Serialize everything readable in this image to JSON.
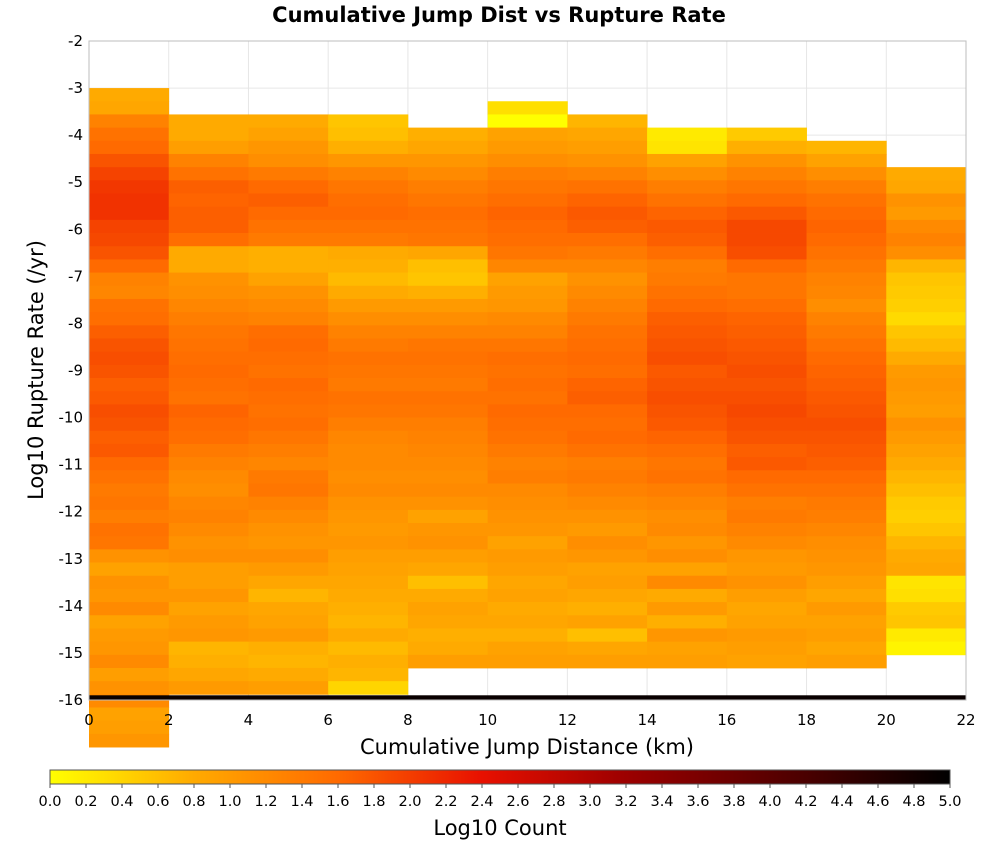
{
  "chart_data": {
    "type": "heatmap",
    "title": "Cumulative Jump Dist vs Rupture Rate",
    "xlabel": "Cumulative Jump Distance (km)",
    "ylabel": "Log10 Rupture Rate (/yr)",
    "xlim": [
      0,
      22
    ],
    "ylim": [
      -16,
      -2
    ],
    "x_ticks": [
      "0",
      "2",
      "4",
      "6",
      "8",
      "10",
      "12",
      "14",
      "16",
      "18",
      "20",
      "22"
    ],
    "y_ticks": [
      "-2",
      "-3",
      "-4",
      "-5",
      "-6",
      "-7",
      "-8",
      "-9",
      "-10",
      "-11",
      "-12",
      "-13",
      "-14",
      "-15",
      "-16"
    ],
    "grid": true,
    "x_bin_width": 2,
    "y_bin_height": 0.28,
    "color_scale": {
      "label": "Log10 Count",
      "min": 0.0,
      "max": 5.0,
      "ticks": [
        "0.0",
        "0.2",
        "0.4",
        "0.6",
        "0.8",
        "1.0",
        "1.2",
        "1.4",
        "1.6",
        "1.8",
        "2.0",
        "2.2",
        "2.4",
        "2.6",
        "2.8",
        "3.0",
        "3.2",
        "3.4",
        "3.6",
        "3.8",
        "4.0",
        "4.2",
        "4.4",
        "4.6",
        "4.8",
        "5.0"
      ],
      "stops": [
        {
          "v": 0.0,
          "color": "#ffff00"
        },
        {
          "v": 0.8,
          "color": "#ffaa00"
        },
        {
          "v": 1.6,
          "color": "#ff6a00"
        },
        {
          "v": 2.4,
          "color": "#e81000"
        },
        {
          "v": 3.2,
          "color": "#9c0000"
        },
        {
          "v": 4.2,
          "color": "#4a0000"
        },
        {
          "v": 5.0,
          "color": "#000000"
        }
      ]
    },
    "columns": [
      {
        "x": 1,
        "top": -3.0,
        "values": [
          0.8,
          0.85,
          1.3,
          1.5,
          1.6,
          1.8,
          1.95,
          2.05,
          2.1,
          2.1,
          1.95,
          1.9,
          1.8,
          1.6,
          1.3,
          1.25,
          1.5,
          1.55,
          1.7,
          1.8,
          1.85,
          1.8,
          1.7,
          1.75,
          1.85,
          1.8,
          1.7,
          1.75,
          1.6,
          1.5,
          1.4,
          1.45,
          1.35,
          1.5,
          1.45,
          1.1,
          0.9,
          1.1,
          1.05,
          1.2,
          0.9,
          1.0,
          1.05,
          1.2,
          0.95,
          1.1,
          1.2,
          0.9,
          0.95,
          1.05
        ]
      },
      {
        "x": 3,
        "top": -3.56,
        "values": [
          0.8,
          0.8,
          0.95,
          1.3,
          1.5,
          1.7,
          1.65,
          1.7,
          1.7,
          1.55,
          0.8,
          0.8,
          1.1,
          1.15,
          1.25,
          1.35,
          1.45,
          1.5,
          1.55,
          1.6,
          1.55,
          1.5,
          1.65,
          1.6,
          1.55,
          1.4,
          1.3,
          1.2,
          1.15,
          1.25,
          1.3,
          1.2,
          1.1,
          1.15,
          0.95,
          0.95,
          1.05,
          0.9,
          1.0,
          1.05,
          0.7,
          0.75,
          0.85,
          1.0
        ]
      },
      {
        "x": 5,
        "top": -3.56,
        "values": [
          0.8,
          0.9,
          1.05,
          1.15,
          1.4,
          1.6,
          1.7,
          1.6,
          1.5,
          1.4,
          0.75,
          0.75,
          0.9,
          1.1,
          1.2,
          1.3,
          1.55,
          1.6,
          1.55,
          1.5,
          1.6,
          1.55,
          1.5,
          1.55,
          1.45,
          1.35,
          1.25,
          1.4,
          1.45,
          1.3,
          1.2,
          1.1,
          1.05,
          1.15,
          1.0,
          0.85,
          0.7,
          0.85,
          0.9,
          1.0,
          0.75,
          0.7,
          0.8,
          0.95
        ]
      },
      {
        "x": 7,
        "top": -3.56,
        "values": [
          0.55,
          0.6,
          0.75,
          1.05,
          1.3,
          1.45,
          1.55,
          1.6,
          1.5,
          1.4,
          0.8,
          0.75,
          0.65,
          0.8,
          1.0,
          1.15,
          1.3,
          1.4,
          1.5,
          1.45,
          1.4,
          1.5,
          1.45,
          1.35,
          1.25,
          1.2,
          1.2,
          1.15,
          1.2,
          1.1,
          1.05,
          1.0,
          1.05,
          0.95,
          0.9,
          0.85,
          0.8,
          0.75,
          0.7,
          0.8,
          0.65,
          0.75,
          0.7,
          0.4
        ]
      },
      {
        "x": 9,
        "top": -3.84,
        "values": [
          0.75,
          0.85,
          1.05,
          1.2,
          1.35,
          1.45,
          1.55,
          1.5,
          1.45,
          0.85,
          0.6,
          0.55,
          0.75,
          1.0,
          1.15,
          1.3,
          1.45,
          1.5,
          1.45,
          1.4,
          1.5,
          1.45,
          1.35,
          1.3,
          1.25,
          1.2,
          1.15,
          1.2,
          1.1,
          0.9,
          1.05,
          1.1,
          0.95,
          0.85,
          0.6,
          0.8,
          0.9,
          0.85,
          0.75,
          0.8,
          0.95
        ]
      },
      {
        "x": 11,
        "top": -3.28,
        "values": [
          0.3,
          0.0,
          0.9,
          1.0,
          1.15,
          1.35,
          1.45,
          1.55,
          1.65,
          1.6,
          1.55,
          1.45,
          1.25,
          0.9,
          1.0,
          1.05,
          1.2,
          1.3,
          1.45,
          1.55,
          1.5,
          1.55,
          1.5,
          1.6,
          1.55,
          1.5,
          1.4,
          1.3,
          1.35,
          1.2,
          1.15,
          1.1,
          1.05,
          0.9,
          1.0,
          0.95,
          0.85,
          0.9,
          0.8,
          0.85,
          0.75,
          0.9,
          0.95
        ]
      },
      {
        "x": 13,
        "top": -3.56,
        "values": [
          0.7,
          0.85,
          0.95,
          1.1,
          1.3,
          1.5,
          1.65,
          1.75,
          1.7,
          1.55,
          1.4,
          1.25,
          1.1,
          1.2,
          1.3,
          1.4,
          1.5,
          1.55,
          1.6,
          1.55,
          1.65,
          1.7,
          1.6,
          1.55,
          1.6,
          1.5,
          1.35,
          1.4,
          1.3,
          1.2,
          1.1,
          1.0,
          1.15,
          1.05,
          0.9,
          0.95,
          0.85,
          0.75,
          0.9,
          0.6,
          0.85,
          0.95
        ]
      },
      {
        "x": 15,
        "top": -3.84,
        "values": [
          0.2,
          0.25,
          0.9,
          1.15,
          1.35,
          1.5,
          1.65,
          1.75,
          1.7,
          1.55,
          1.35,
          1.4,
          1.5,
          1.6,
          1.7,
          1.75,
          1.8,
          1.85,
          1.75,
          1.8,
          1.85,
          1.8,
          1.75,
          1.65,
          1.55,
          1.45,
          1.5,
          1.35,
          1.25,
          1.15,
          1.2,
          1.05,
          1.15,
          0.9,
          1.2,
          0.8,
          1.0,
          0.75,
          1.05,
          0.9,
          0.95
        ]
      },
      {
        "x": 17,
        "top": -3.84,
        "values": [
          0.5,
          0.75,
          1.1,
          1.3,
          1.45,
          1.6,
          1.75,
          1.9,
          1.9,
          1.85,
          1.6,
          1.45,
          1.45,
          1.55,
          1.65,
          1.7,
          1.75,
          1.8,
          1.85,
          1.8,
          1.85,
          1.9,
          1.85,
          1.8,
          1.7,
          1.75,
          1.6,
          1.5,
          1.35,
          1.4,
          1.3,
          1.2,
          1.05,
          1.0,
          1.1,
          0.95,
          0.85,
          0.9,
          1.0,
          0.95,
          0.9
        ]
      },
      {
        "x": 19,
        "top": -4.12,
        "values": [
          0.7,
          0.9,
          1.15,
          1.35,
          1.5,
          1.6,
          1.65,
          1.6,
          1.5,
          1.4,
          1.3,
          1.25,
          1.15,
          1.3,
          1.4,
          1.5,
          1.6,
          1.65,
          1.7,
          1.75,
          1.8,
          1.85,
          1.8,
          1.75,
          1.7,
          1.6,
          1.5,
          1.4,
          1.35,
          1.25,
          1.15,
          1.1,
          1.05,
          0.95,
          0.85,
          1.0,
          0.9,
          0.95,
          0.85,
          0.95
        ]
      },
      {
        "x": 21,
        "top": -4.68,
        "values": [
          0.8,
          0.85,
          1.1,
          1.0,
          1.2,
          1.3,
          1.15,
          0.7,
          0.55,
          0.5,
          0.45,
          0.35,
          0.55,
          0.65,
          0.8,
          1.0,
          1.05,
          1.0,
          0.95,
          1.1,
          1.0,
          0.9,
          0.8,
          0.7,
          0.6,
          0.5,
          0.45,
          0.55,
          0.7,
          0.8,
          0.85,
          0.25,
          0.3,
          0.5,
          0.55,
          0.2,
          0.1,
          null
        ]
      }
    ],
    "bottom_row": {
      "y": -15.95,
      "height": 0.1,
      "value": 4.9
    }
  }
}
